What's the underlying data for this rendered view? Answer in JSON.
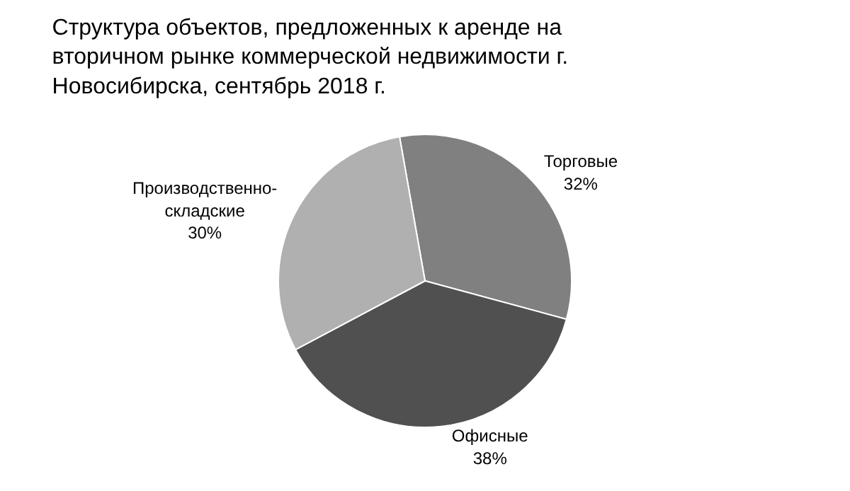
{
  "chart_data": {
    "type": "pie",
    "title": "Структура объектов, предложенных к аренде на вторичном рынке коммерческой недвижимости г. Новосибирска, сентябрь 2018 г.",
    "categories": [
      "Торговые",
      "Офисные",
      "Производственно-складские"
    ],
    "values": [
      32,
      38,
      30
    ],
    "colors": [
      "#808080",
      "#505050",
      "#b0b0b0"
    ],
    "value_labels": [
      "32%",
      "38%",
      "30%"
    ],
    "legend": false
  }
}
